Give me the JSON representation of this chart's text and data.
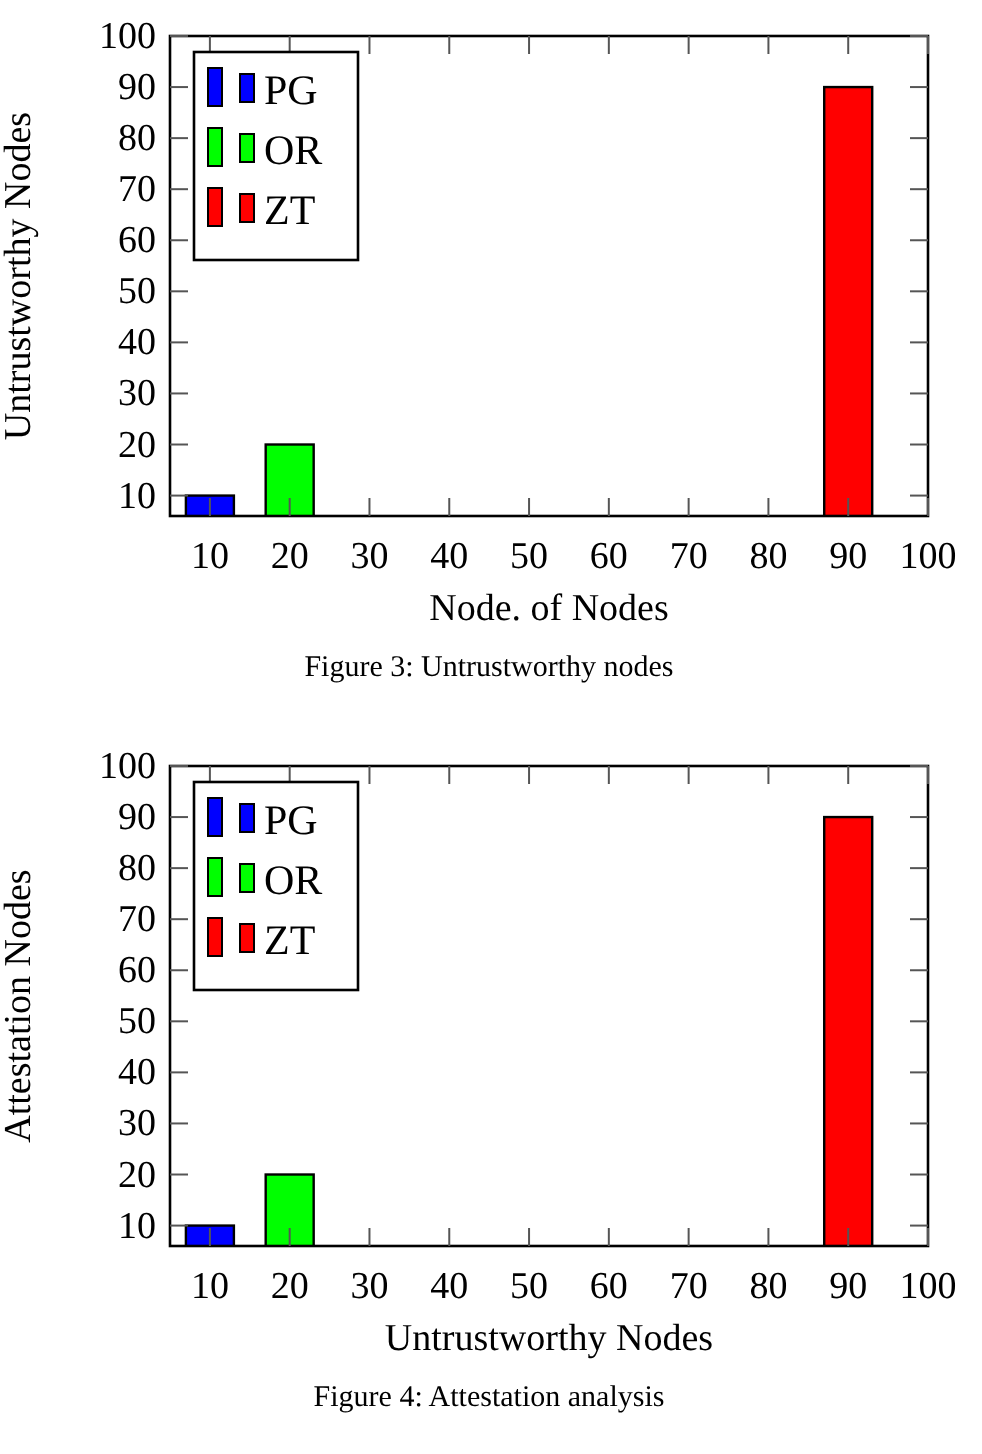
{
  "chart_data": [
    {
      "type": "bar",
      "xlabel": "Node. of Nodes",
      "ylabel": "Untrustworthy Nodes",
      "annotations": [
        "Figure 3: Untrustworthy nodes"
      ],
      "xlim": [
        5,
        100
      ],
      "xticks": [
        10,
        20,
        30,
        40,
        50,
        60,
        70,
        80,
        90,
        100
      ],
      "ylim": [
        6,
        100
      ],
      "yticks": [
        10,
        20,
        30,
        40,
        50,
        60,
        70,
        80,
        90,
        100
      ],
      "legend": "top left",
      "grid": false,
      "series": [
        {
          "name": "PG",
          "color": "#0000ff",
          "x": [
            10
          ],
          "values": [
            10
          ]
        },
        {
          "name": "OR",
          "color": "#00ff00",
          "x": [
            20
          ],
          "values": [
            20
          ]
        },
        {
          "name": "ZT",
          "color": "#ff0000",
          "x": [
            90
          ],
          "values": [
            90
          ]
        }
      ]
    },
    {
      "type": "bar",
      "xlabel": "Untrustworthy Nodes",
      "ylabel": "Attestation Nodes",
      "annotations": [
        "Figure 4: Attestation analysis"
      ],
      "xlim": [
        5,
        100
      ],
      "xticks": [
        10,
        20,
        30,
        40,
        50,
        60,
        70,
        80,
        90,
        100
      ],
      "ylim": [
        6,
        100
      ],
      "yticks": [
        10,
        20,
        30,
        40,
        50,
        60,
        70,
        80,
        90,
        100
      ],
      "legend": "top left",
      "grid": false,
      "series": [
        {
          "name": "PG",
          "color": "#0000ff",
          "x": [
            10
          ],
          "values": [
            10
          ]
        },
        {
          "name": "OR",
          "color": "#00ff00",
          "x": [
            20
          ],
          "values": [
            20
          ]
        },
        {
          "name": "ZT",
          "color": "#ff0000",
          "x": [
            90
          ],
          "values": [
            90
          ]
        }
      ]
    }
  ]
}
